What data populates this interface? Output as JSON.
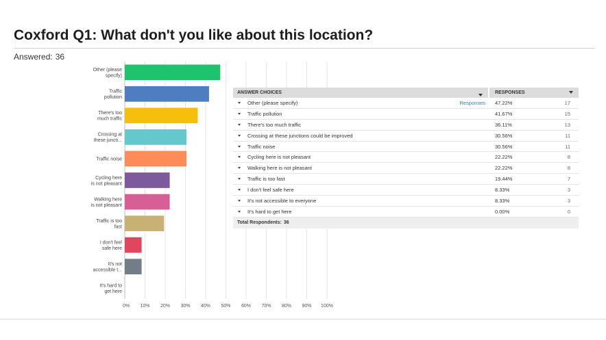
{
  "page": {
    "title": "Coxford Q1: What don't you like about this location?",
    "answered_label": "Answered:",
    "answered_value": "36"
  },
  "colors": {
    "grid": "#e6e6e6",
    "axis": "#bbbbbb",
    "bars": [
      "#1ec36e",
      "#4e7ebf",
      "#f6bf0c",
      "#64c8cc",
      "#fe8c58",
      "#7d5a9e",
      "#d85f95",
      "#c8b273",
      "#e0465d",
      "#737d88",
      "#bcbcbc"
    ]
  },
  "chart_data": {
    "type": "bar",
    "orientation": "horizontal",
    "categories": [
      [
        "Other (please",
        "specify)"
      ],
      [
        "Traffic",
        "pollution"
      ],
      [
        "There's too",
        "much traffic"
      ],
      [
        "Crossing at",
        "these juncti..."
      ],
      [
        "Traffic noise"
      ],
      [
        "Cycling here",
        "is not pleasant"
      ],
      [
        "Walking here",
        "is not pleasant"
      ],
      [
        "Traffic is too",
        "fast"
      ],
      [
        "I don't feel",
        "safe here"
      ],
      [
        "It's not",
        "accessible t..."
      ],
      [
        "It's hard to",
        "get here"
      ]
    ],
    "values": [
      47.22,
      41.67,
      36.11,
      30.56,
      30.56,
      22.22,
      22.22,
      19.44,
      8.33,
      8.33,
      0.0
    ],
    "xlim": [
      0,
      100
    ],
    "x_ticks": [
      "0%",
      "10%",
      "20%",
      "30%",
      "40%",
      "50%",
      "60%",
      "70%",
      "80%",
      "90%",
      "100%"
    ],
    "grid": true
  },
  "table": {
    "header_choices": "ANSWER CHOICES",
    "header_responses": "RESPONSES",
    "rows": [
      {
        "choice": "Other (please specify)",
        "link": "Responses",
        "pct": "47.22%",
        "count": "17"
      },
      {
        "choice": "Traffic pollution",
        "link": "",
        "pct": "41.67%",
        "count": "15"
      },
      {
        "choice": "There's too much traffic",
        "link": "",
        "pct": "36.11%",
        "count": "13"
      },
      {
        "choice": "Crossing at these junctions could be improved",
        "link": "",
        "pct": "30.56%",
        "count": "11"
      },
      {
        "choice": "Traffic noise",
        "link": "",
        "pct": "30.56%",
        "count": "11"
      },
      {
        "choice": "Cycling here is not pleasant",
        "link": "",
        "pct": "22.22%",
        "count": "8"
      },
      {
        "choice": "Walking here is not pleasant",
        "link": "",
        "pct": "22.22%",
        "count": "8"
      },
      {
        "choice": "Traffic is too fast",
        "link": "",
        "pct": "19.44%",
        "count": "7"
      },
      {
        "choice": "I don't feel safe here",
        "link": "",
        "pct": "8.33%",
        "count": "3"
      },
      {
        "choice": "It's not accessible to everyone",
        "link": "",
        "pct": "8.33%",
        "count": "3"
      },
      {
        "choice": "It's hard to get here",
        "link": "",
        "pct": "0.00%",
        "count": "0"
      }
    ],
    "total_label": "Total Respondents:",
    "total_value": "36"
  }
}
